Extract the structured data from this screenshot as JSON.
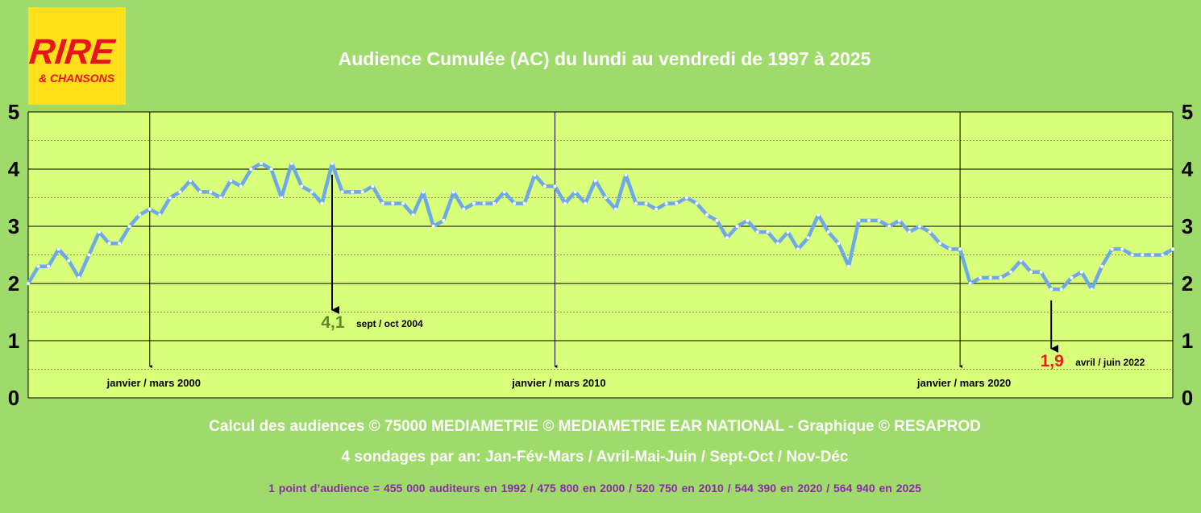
{
  "logo": {
    "line1": "RIRE",
    "line2": "& CHANSONS"
  },
  "chart_data": {
    "type": "line",
    "title": "Audience Cumulée (AC) du lundi au vendredi de 1997 à 2025",
    "xlabel": "",
    "ylabel": "",
    "ylim": [
      0,
      5
    ],
    "yticks": [
      "0",
      "1",
      "2",
      "3",
      "4",
      "5"
    ],
    "grid": true,
    "x_start": "1997 Jan-Fév-Mars",
    "surveys_per_year": 4,
    "series": [
      {
        "color": "#6fa8e8",
        "values": [
          2.0,
          2.3,
          2.3,
          2.6,
          2.4,
          2.1,
          2.5,
          2.9,
          2.7,
          2.7,
          3.0,
          3.2,
          3.3,
          3.2,
          3.5,
          3.6,
          3.8,
          3.6,
          3.6,
          3.5,
          3.8,
          3.7,
          4.0,
          4.1,
          4.0,
          3.5,
          4.1,
          3.7,
          3.6,
          3.4,
          4.1,
          3.6,
          3.6,
          3.6,
          3.7,
          3.4,
          3.4,
          3.4,
          3.2,
          3.6,
          3.0,
          3.1,
          3.6,
          3.3,
          3.4,
          3.4,
          3.4,
          3.6,
          3.4,
          3.4,
          3.9,
          3.7,
          3.7,
          3.4,
          3.6,
          3.4,
          3.8,
          3.5,
          3.3,
          3.9,
          3.4,
          3.4,
          3.3,
          3.4,
          3.4,
          3.5,
          3.4,
          3.2,
          3.1,
          2.8,
          3.0,
          3.1,
          2.9,
          2.9,
          2.7,
          2.9,
          2.6,
          2.8,
          3.2,
          2.9,
          2.7,
          2.3,
          3.1,
          3.1,
          3.1,
          3.0,
          3.1,
          2.9,
          3.0,
          2.9,
          2.7,
          2.6,
          2.6,
          2.0,
          2.1,
          2.1,
          2.1,
          2.2,
          2.4,
          2.2,
          2.2,
          1.9,
          1.9,
          2.1,
          2.2,
          1.9,
          2.3,
          2.6,
          2.6,
          2.5,
          2.5,
          2.5,
          2.5,
          2.6
        ]
      }
    ],
    "period_markers": [
      {
        "index": 12,
        "label": "janvier / mars 2000"
      },
      {
        "index": 52,
        "label": "janvier / mars 2010"
      },
      {
        "index": 92,
        "label": "janvier / mars 2020"
      }
    ],
    "annotations": [
      {
        "index": 30,
        "value": "4,1",
        "label": "sept / oct 2004",
        "color": "#5a8a2e"
      },
      {
        "index": 101,
        "value": "1,9",
        "label": "avril / juin 2022",
        "color": "#ee1c1c"
      }
    ]
  },
  "footer": {
    "credits": "Calcul des audiences © 75000 MEDIAMETRIE © MEDIAMETRIE EAR NATIONAL - Graphique © RESAPROD",
    "surveys": "4 sondages par an: Jan-Fév-Mars / Avril-Mai-Juin / Sept-Oct / Nov-Déc",
    "points": "1 point d’audience = 455 000 auditeurs en 1992   /   475 800 en 2000   /   520 750 en 2010   /   544 390 en 2020   /   564 940 en 2025"
  },
  "colors": {
    "background": "#9fdb6b",
    "plot_area": "#d9ff7a",
    "line": "#6fa8e8",
    "logo_bg": "#ffe01b",
    "logo_text": "#e8141c"
  }
}
